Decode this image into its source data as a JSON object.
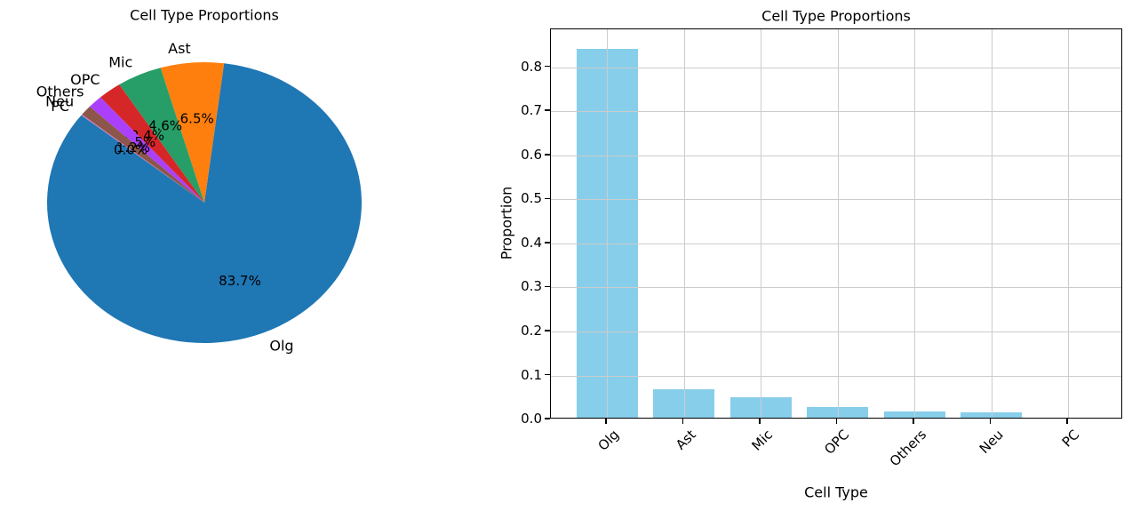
{
  "figure": {
    "background": "#ffffff"
  },
  "chart_data": [
    {
      "type": "pie",
      "title": "Cell Type Proportions",
      "start_angle": 141.48,
      "counterclockwise": true,
      "label_radius": 1.1,
      "pct_radius": 0.6,
      "slices": [
        {
          "label": "Olg",
          "pct": 83.7,
          "pct_label": "83.7%",
          "color": "#1f77b4"
        },
        {
          "label": "Ast",
          "pct": 6.5,
          "pct_label": "6.5%",
          "color": "#ff7f0e"
        },
        {
          "label": "Mic",
          "pct": 4.6,
          "pct_label": "4.6%",
          "color": "#279e68"
        },
        {
          "label": "OPC",
          "pct": 2.4,
          "pct_label": "2.4%",
          "color": "#d62728"
        },
        {
          "label": "Others",
          "pct": 1.5,
          "pct_label": "1.5%",
          "color": "#aa40fc"
        },
        {
          "label": "Neu",
          "pct": 1.2,
          "pct_label": "1.2%",
          "color": "#8c564b"
        },
        {
          "label": "PC",
          "pct": 0.0,
          "pct_label": "0.0%",
          "color": "#e377c2"
        }
      ]
    },
    {
      "type": "bar",
      "title": "Cell Type Proportions",
      "xlabel": "Cell Type",
      "ylabel": "Proportion",
      "categories": [
        "Olg",
        "Ast",
        "Mic",
        "OPC",
        "Others",
        "Neu",
        "PC"
      ],
      "values": [
        0.837,
        0.065,
        0.046,
        0.024,
        0.015,
        0.012,
        0.0
      ],
      "bar_color": "#87ceeb",
      "ylim": [
        0,
        0.886
      ],
      "yticks": [
        0.0,
        0.1,
        0.2,
        0.3,
        0.4,
        0.5,
        0.6,
        0.7,
        0.8
      ],
      "ytick_labels": [
        "0.0",
        "0.1",
        "0.2",
        "0.3",
        "0.4",
        "0.5",
        "0.6",
        "0.7",
        "0.8"
      ],
      "grid": true,
      "grid_color": "#cccccc",
      "legend": "none"
    }
  ]
}
